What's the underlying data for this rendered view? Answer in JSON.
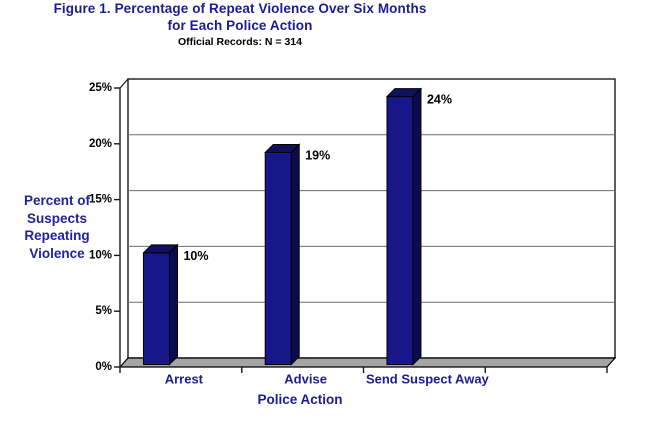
{
  "title": {
    "line1": "Figure 1. Percentage of Repeat Violence Over Six Months",
    "line2": "for Each Police Action",
    "subtitle": "Official Records: N = 314"
  },
  "chart_data": {
    "type": "bar",
    "style": "3d-column",
    "title": "Figure 1. Percentage of Repeat Violence Over Six Months for Each Police Action",
    "subtitle": "Official Records: N = 314",
    "categories": [
      "Arrest",
      "Advise",
      "Send Suspect Away"
    ],
    "values": [
      10,
      19,
      24
    ],
    "value_labels": [
      "10%",
      "19%",
      "24%"
    ],
    "xlabel": "Police Action",
    "ylabel": "Percent of Suspects Repeating Violence",
    "ylabel_lines": [
      "Percent of",
      "Suspects",
      "Repeating",
      "Violence"
    ],
    "ylim": [
      0,
      25
    ],
    "ytick_step": 5,
    "ytick_labels": [
      "0%",
      "5%",
      "10%",
      "15%",
      "20%",
      "25%"
    ],
    "grid": true,
    "legend": false,
    "empty_fourth_category_slot": true
  },
  "colors": {
    "accent_blue": "#1b1b96",
    "bar_front": "#17178a",
    "bar_side": "#0b0b4f",
    "bar_top": "#10105c",
    "floor_gray": "#a5a5a5",
    "gridline": "#6e6e6e",
    "frame": "#1a1a1a",
    "label_black": "#000000",
    "wall_white": "#ffffff"
  }
}
